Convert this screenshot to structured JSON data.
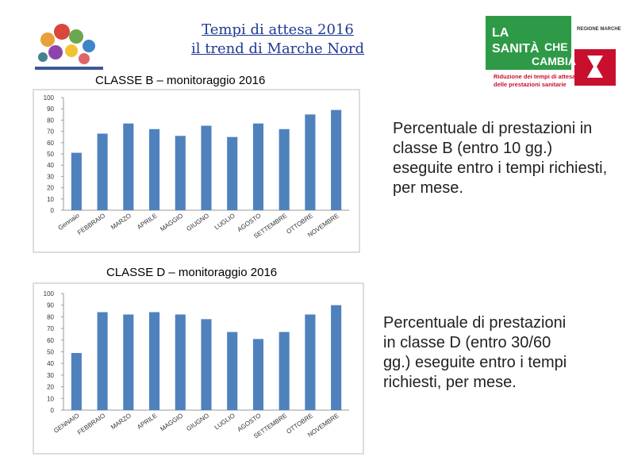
{
  "header": {
    "title_line1": "Tempi di attesa 2016",
    "title_line2": "il trend di Marche Nord"
  },
  "logo": {
    "line1": "LA",
    "line2": "SANITÀ",
    "line3": "CHE",
    "line4": "CAMBIA",
    "region": "REGIONE MARCHE",
    "caption_line1": "Riduzione dei tempi di attesa",
    "caption_line2": "delle prestazioni sanitarie"
  },
  "descriptions": [
    "Percentuale di prestazioni in classe B (entro 10 gg.) eseguite entro i tempi richiesti, per mese.",
    "Percentuale di prestazioni in classe D (entro 30/60 gg.) eseguite entro i tempi richiesti, per mese."
  ],
  "chart_data": [
    {
      "type": "bar",
      "title": "CLASSE B – monitoraggio 2016",
      "categories": [
        "Gennaio",
        "FEBBRAIO",
        "MARZO",
        "APRILE",
        "MAGGIO",
        "GIUGNO",
        "LUGLIO",
        "AGOSTO",
        "SETTEMBRE",
        "OTTOBRE",
        "NOVEMBRE"
      ],
      "values": [
        51,
        68,
        77,
        72,
        66,
        75,
        65,
        77,
        72,
        85,
        89
      ],
      "color": "#4f81bd",
      "ylim": [
        0,
        100
      ],
      "yticks": [
        0,
        10,
        20,
        30,
        40,
        50,
        60,
        70,
        80,
        90,
        100
      ]
    },
    {
      "type": "bar",
      "title": "CLASSE D – monitoraggio 2016",
      "categories": [
        "GENNAIO",
        "FEBBRAIO",
        "MARZO",
        "APRILE",
        "MAGGIO",
        "GIUGNO",
        "LUGLIO",
        "AGOSTO",
        "SETTEMBRE",
        "OTTOBRE",
        "NOVEMBRE"
      ],
      "values": [
        49,
        84,
        82,
        84,
        82,
        78,
        67,
        61,
        67,
        82,
        90
      ],
      "color": "#4f81bd",
      "ylim": [
        0,
        100
      ],
      "yticks": [
        0,
        10,
        20,
        30,
        40,
        50,
        60,
        70,
        80,
        90,
        100
      ]
    }
  ]
}
